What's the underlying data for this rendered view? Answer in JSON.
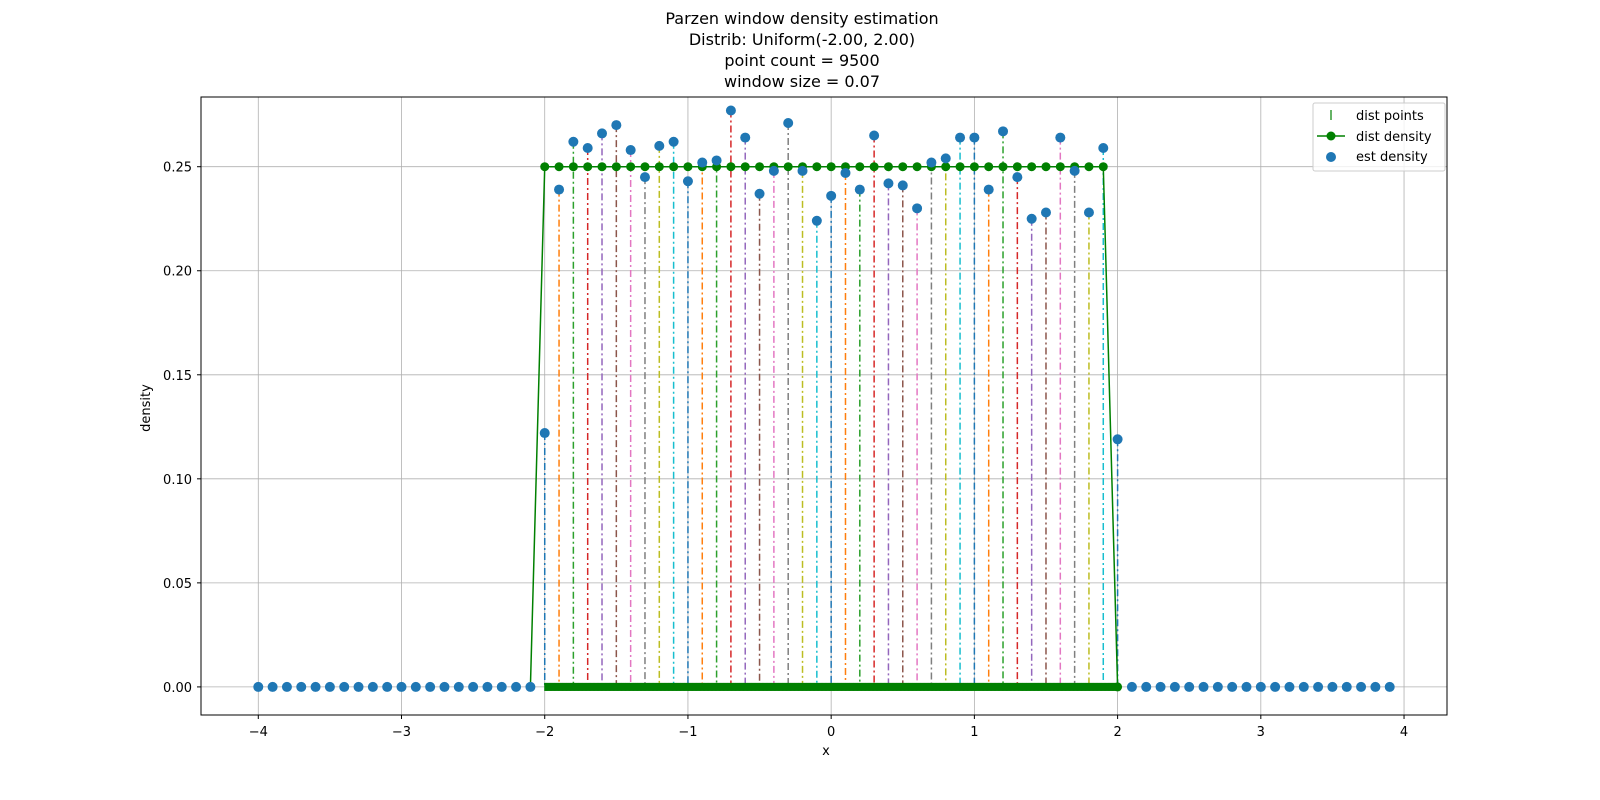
{
  "chart_data": {
    "type": "line",
    "title_lines": [
      "Parzen window density estimation",
      "Distrib: Uniform(-2.00, 2.00)",
      "point count = 9500",
      "window size = 0.07"
    ],
    "xlabel": "x",
    "ylabel": "density",
    "xlim": [
      -4.4,
      4.3
    ],
    "ylim": [
      -0.0135,
      0.2835
    ],
    "xticks": [
      -4,
      -3,
      -2,
      -1,
      0,
      1,
      2,
      3,
      4
    ],
    "xtick_labels": [
      "−4",
      "−3",
      "−2",
      "−1",
      "0",
      "1",
      "2",
      "3",
      "4"
    ],
    "yticks": [
      0.0,
      0.05,
      0.1,
      0.15,
      0.2,
      0.25
    ],
    "ytick_labels": [
      "0.00",
      "0.05",
      "0.10",
      "0.15",
      "0.20",
      "0.25"
    ],
    "grid": true,
    "legend_position": "top-right",
    "legend": [
      {
        "label": "dist points",
        "marker": "vline",
        "color": "#008000"
      },
      {
        "label": "dist density",
        "marker": "line-circle",
        "color": "#008000"
      },
      {
        "label": "est density",
        "marker": "circle",
        "color": "#1f77b4"
      }
    ],
    "series": [
      {
        "name": "dist density",
        "color": "#008000",
        "x": [
          -2.1,
          -2.0,
          -1.9,
          -1.8,
          -1.7,
          -1.6,
          -1.5,
          -1.4,
          -1.3,
          -1.2,
          -1.1,
          -1.0,
          -0.9,
          -0.8,
          -0.7,
          -0.6,
          -0.5,
          -0.4,
          -0.3,
          -0.2,
          -0.1,
          0.0,
          0.1,
          0.2,
          0.3,
          0.4,
          0.5,
          0.6,
          0.7,
          0.8,
          0.9,
          1.0,
          1.1,
          1.2,
          1.3,
          1.4,
          1.5,
          1.6,
          1.7,
          1.8,
          1.9,
          2.0
        ],
        "y": [
          0.0,
          0.25,
          0.25,
          0.25,
          0.25,
          0.25,
          0.25,
          0.25,
          0.25,
          0.25,
          0.25,
          0.25,
          0.25,
          0.25,
          0.25,
          0.25,
          0.25,
          0.25,
          0.25,
          0.25,
          0.25,
          0.25,
          0.25,
          0.25,
          0.25,
          0.25,
          0.25,
          0.25,
          0.25,
          0.25,
          0.25,
          0.25,
          0.25,
          0.25,
          0.25,
          0.25,
          0.25,
          0.25,
          0.25,
          0.25,
          0.25,
          0.0
        ]
      },
      {
        "name": "est density",
        "color": "#1f77b4",
        "x": [
          -4.0,
          -3.9,
          -3.8,
          -3.7,
          -3.6,
          -3.5,
          -3.4,
          -3.3,
          -3.2,
          -3.1,
          -3.0,
          -2.9,
          -2.8,
          -2.7,
          -2.6,
          -2.5,
          -2.4,
          -2.3,
          -2.2,
          -2.1,
          -2.0,
          -1.9,
          -1.8,
          -1.7,
          -1.6,
          -1.5,
          -1.4,
          -1.3,
          -1.2,
          -1.1,
          -1.0,
          -0.9,
          -0.8,
          -0.7,
          -0.6,
          -0.5,
          -0.4,
          -0.3,
          -0.2,
          -0.1,
          0.0,
          0.1,
          0.2,
          0.3,
          0.4,
          0.5,
          0.6,
          0.7,
          0.8,
          0.9,
          1.0,
          1.1,
          1.2,
          1.3,
          1.4,
          1.5,
          1.6,
          1.7,
          1.8,
          1.9,
          2.0,
          2.1,
          2.2,
          2.3,
          2.4,
          2.5,
          2.6,
          2.7,
          2.8,
          2.9,
          3.0,
          3.1,
          3.2,
          3.3,
          3.4,
          3.5,
          3.6,
          3.7,
          3.8,
          3.9
        ],
        "y": [
          0.0,
          0.0,
          0.0,
          0.0,
          0.0,
          0.0,
          0.0,
          0.0,
          0.0,
          0.0,
          0.0,
          0.0,
          0.0,
          0.0,
          0.0,
          0.0,
          0.0,
          0.0,
          0.0,
          0.0,
          0.122,
          0.239,
          0.262,
          0.259,
          0.266,
          0.27,
          0.258,
          0.245,
          0.26,
          0.262,
          0.243,
          0.252,
          0.253,
          0.277,
          0.264,
          0.237,
          0.248,
          0.271,
          0.248,
          0.224,
          0.236,
          0.247,
          0.239,
          0.265,
          0.242,
          0.241,
          0.23,
          0.252,
          0.254,
          0.264,
          0.264,
          0.239,
          0.267,
          0.245,
          0.225,
          0.228,
          0.264,
          0.248,
          0.228,
          0.259,
          0.119,
          0.0,
          0.0,
          0.0,
          0.0,
          0.0,
          0.0,
          0.0,
          0.0,
          0.0,
          0.0,
          0.0,
          0.0,
          0.0,
          0.0,
          0.0,
          0.0,
          0.0,
          0.0,
          0.0
        ]
      }
    ],
    "dist_points_color": "#008000",
    "stem_colors": [
      "#1f77b4",
      "#ff7f0e",
      "#2ca02c",
      "#d62728",
      "#9467bd",
      "#8c564b",
      "#e377c2",
      "#7f7f7f",
      "#bcbd22",
      "#17becf"
    ]
  }
}
